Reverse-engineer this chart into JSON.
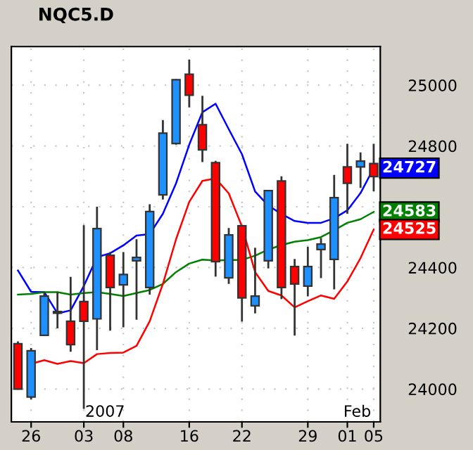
{
  "chart_data": {
    "type": "candlestick",
    "title": "NQC5.D",
    "categories": [
      null,
      "26",
      null,
      null,
      null,
      "03",
      null,
      null,
      "08",
      null,
      null,
      null,
      null,
      "16",
      null,
      null,
      null,
      "22",
      null,
      null,
      null,
      null,
      "29",
      null,
      null,
      "01",
      null,
      "05"
    ],
    "ohlc": [
      [
        24149,
        24157,
        23998,
        24000
      ],
      [
        23974,
        24135,
        23966,
        24126
      ],
      [
        24177,
        24319,
        24177,
        24306
      ],
      [
        24250,
        24319,
        24200,
        24255
      ],
      [
        24223,
        24369,
        24123,
        24146
      ],
      [
        24288,
        24539,
        23935,
        24223
      ],
      [
        24231,
        24600,
        24128,
        24528
      ],
      [
        24440,
        24451,
        24192,
        24334
      ],
      [
        24343,
        24451,
        24203,
        24377
      ],
      [
        24422,
        24493,
        24228,
        24433
      ],
      [
        24334,
        24608,
        24311,
        24584
      ],
      [
        24639,
        24885,
        24624,
        24842
      ],
      [
        24808,
        25020,
        24804,
        25018
      ],
      [
        25036,
        25084,
        24927,
        24967
      ],
      [
        24870,
        24965,
        24747,
        24787
      ],
      [
        24745,
        24751,
        24370,
        24419
      ],
      [
        24366,
        24530,
        24346,
        24507
      ],
      [
        24537,
        24540,
        24222,
        24300
      ],
      [
        24274,
        24465,
        24249,
        24306
      ],
      [
        24422,
        24655,
        24397,
        24653
      ],
      [
        24685,
        24700,
        24296,
        24334
      ],
      [
        24403,
        24428,
        24176,
        24346
      ],
      [
        24339,
        24468,
        24305,
        24403
      ],
      [
        24459,
        24497,
        24365,
        24477
      ],
      [
        24427,
        24705,
        24328,
        24630
      ],
      [
        24731,
        24807,
        24577,
        24677
      ],
      [
        24731,
        24779,
        24662,
        24750
      ],
      [
        24742,
        24807,
        24651,
        24699
      ]
    ],
    "colors": [
      "#ff0000",
      "#1e90ff",
      "#1e90ff",
      "#1e90ff",
      "#ff0000",
      "#ff0000",
      "#1e90ff",
      "#ff0000",
      "#1e90ff",
      "#1e90ff",
      "#1e90ff",
      "#1e90ff",
      "#1e90ff",
      "#ff0000",
      "#ff0000",
      "#ff0000",
      "#1e90ff",
      "#ff0000",
      "#1e90ff",
      "#1e90ff",
      "#ff0000",
      "#ff0000",
      "#1e90ff",
      "#1e90ff",
      "#1e90ff",
      "#ff0000",
      "#1e90ff",
      "#ff0000"
    ],
    "series": [
      {
        "type": "line",
        "color": "#0000ff",
        "values": [
          24390,
          24320,
          24319,
          24249,
          24259,
          24339,
          24434,
          24447,
          24473,
          24505,
          24510,
          24577,
          24677,
          24804,
          24911,
          24939,
          24855,
          24773,
          24650,
          24604,
          24576,
          24553,
          24547,
          24547,
          24562,
          24588,
          24645,
          24727
        ],
        "value_labels": [
          null,
          null,
          null,
          null,
          null,
          null,
          null,
          null,
          null,
          null,
          null,
          null,
          null,
          null,
          null,
          null,
          null,
          null,
          null,
          null,
          null,
          null,
          null,
          null,
          null,
          null,
          null,
          "24727"
        ]
      },
      {
        "type": "line",
        "color": "#008000",
        "values": [
          24311,
          24313,
          24319,
          24319,
          24311,
          24316,
          24319,
          24313,
          24306,
          24316,
          24326,
          24346,
          24385,
          24413,
          24426,
          24423,
          24425,
          24425,
          24439,
          24459,
          24474,
          24485,
          24490,
          24500,
          24523,
          24547,
          24559,
          24583
        ],
        "value_labels": [
          null,
          null,
          null,
          null,
          null,
          null,
          null,
          null,
          null,
          null,
          null,
          null,
          null,
          null,
          null,
          null,
          null,
          null,
          null,
          null,
          null,
          null,
          null,
          null,
          null,
          null,
          null,
          "24583"
        ]
      },
      {
        "type": "line",
        "color": "#ff0000",
        "values": [
          null,
          24083,
          24095,
          24083,
          24092,
          24085,
          24115,
          24119,
          24120,
          24142,
          24223,
          24346,
          24493,
          24616,
          24685,
          24693,
          24644,
          24535,
          24385,
          24323,
          24308,
          24269,
          24289,
          24308,
          24297,
          24354,
          24431,
          24525
        ],
        "value_labels": [
          null,
          null,
          null,
          null,
          null,
          null,
          null,
          null,
          null,
          null,
          null,
          null,
          null,
          null,
          null,
          null,
          null,
          null,
          null,
          null,
          null,
          null,
          null,
          null,
          null,
          null,
          null,
          "24525"
        ]
      }
    ],
    "annotations": [
      "2007",
      "Feb"
    ],
    "ylim": [
      23892,
      25127
    ],
    "yticks": [
      24000,
      24200,
      24400,
      {
        "value": 24600,
        "label": null
      },
      24800,
      25000
    ],
    "grid": true
  }
}
